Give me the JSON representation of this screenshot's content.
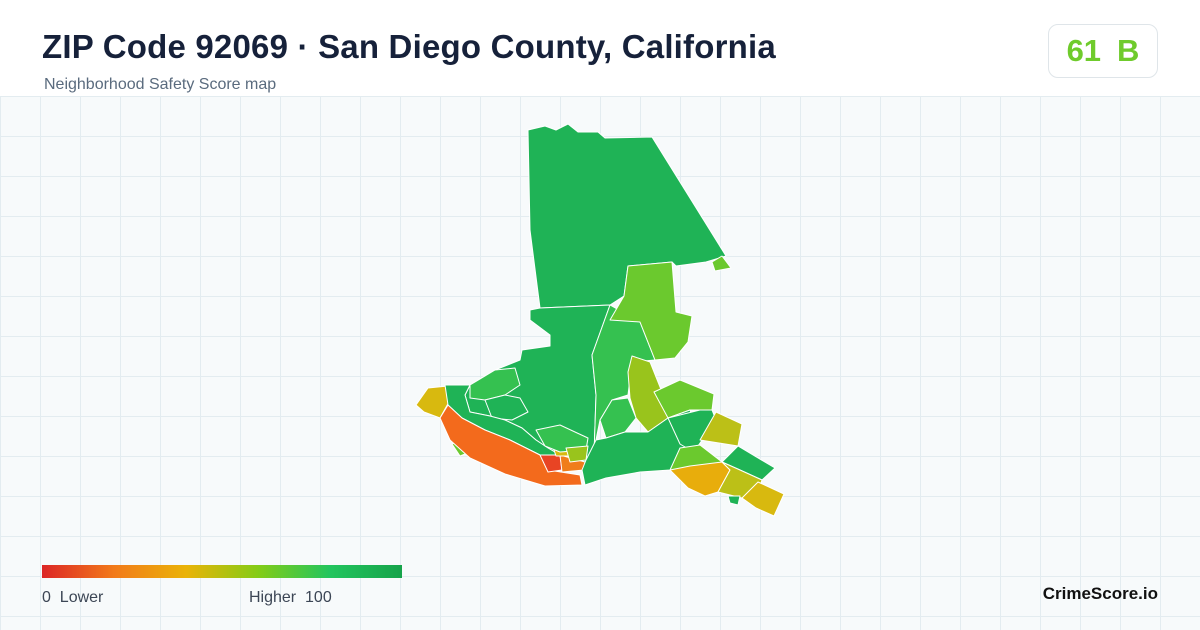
{
  "header": {
    "title": "ZIP Code 92069 · San Diego County, California",
    "subtitle": "Neighborhood Safety Score map"
  },
  "score": {
    "value": "61",
    "grade": "B",
    "color": "#6fcb2c"
  },
  "legend": {
    "low_value": "0",
    "low_label": "Lower",
    "high_label": "Higher",
    "high_value": "100",
    "gradient": [
      "#dc2626",
      "#f27a1a",
      "#eab308",
      "#84cc16",
      "#22c55e",
      "#16a34a"
    ]
  },
  "palette": {
    "dark_green": "#1fb356",
    "green": "#35c150",
    "light_green": "#6bc92e",
    "yellow_green": "#99c41c",
    "olive": "#bcc017",
    "mustard": "#d8b90f",
    "amber": "#e8ad0c",
    "orange": "#f07d1b",
    "deep_orange": "#f36a1c",
    "red": "#e84424"
  },
  "brand": {
    "name": "CrimeScore.io"
  }
}
